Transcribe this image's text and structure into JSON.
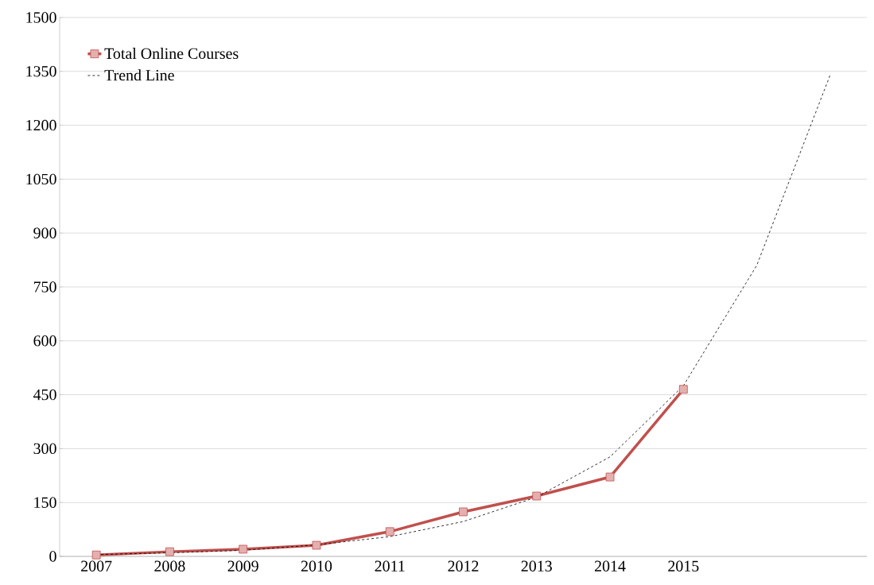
{
  "chart_data": {
    "type": "line",
    "categories": [
      "2007",
      "2008",
      "2009",
      "2010",
      "2011",
      "2012",
      "2013",
      "2014",
      "2015",
      null,
      null
    ],
    "series": [
      {
        "name": "Total Online Courses",
        "color": "#c0504d",
        "marker": "square",
        "line_style": "solid",
        "values": [
          4,
          13,
          20,
          31,
          69,
          124,
          168,
          221,
          465,
          null,
          null
        ]
      },
      {
        "name": "Trend Line",
        "color": "#000000",
        "marker": "none",
        "line_style": "dashed",
        "values": [
          5,
          10,
          17,
          32,
          55,
          97,
          165,
          277,
          475,
          810,
          1340
        ]
      }
    ],
    "ylim": [
      0,
      1500
    ],
    "yticks": [
      0,
      150,
      300,
      450,
      600,
      750,
      900,
      1050,
      1200,
      1350,
      1500
    ],
    "grid": "y",
    "legend": "top left"
  }
}
